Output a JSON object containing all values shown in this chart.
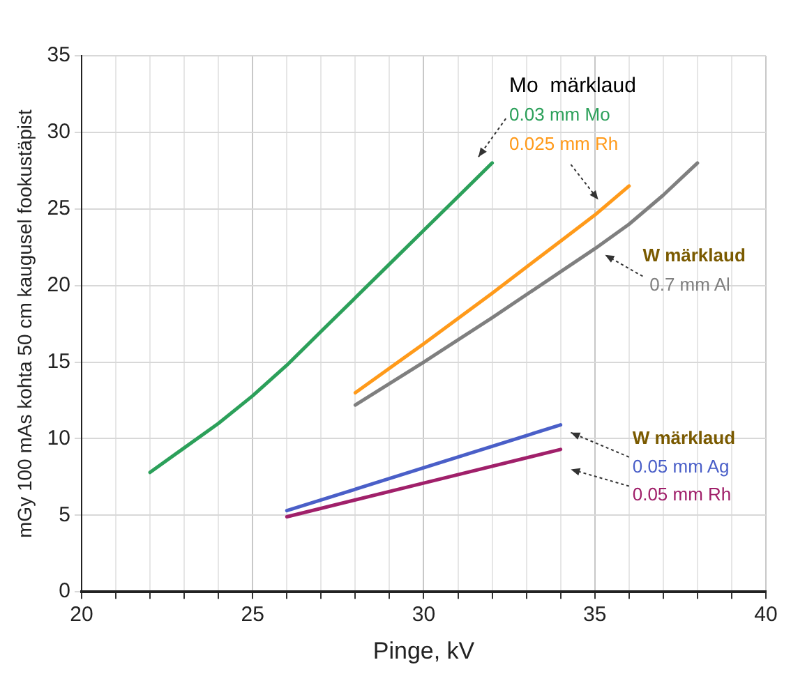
{
  "chart_data": {
    "type": "line",
    "xlabel": "Pinge, kV",
    "ylabel": "mGy 100 mAs kohta 50 cm kaugusel fookustäpist",
    "xlim": [
      20,
      40
    ],
    "ylim": [
      0,
      35
    ],
    "xticks": [
      20,
      {
        "value": 21,
        "label": null
      },
      {
        "value": 22,
        "label": null
      },
      {
        "value": 23,
        "label": null
      },
      {
        "value": 24,
        "label": null
      },
      25,
      {
        "value": 26,
        "label": null
      },
      {
        "value": 27,
        "label": null
      },
      {
        "value": 28,
        "label": null
      },
      {
        "value": 29,
        "label": null
      },
      30,
      {
        "value": 31,
        "label": null
      },
      {
        "value": 32,
        "label": null
      },
      {
        "value": 33,
        "label": null
      },
      {
        "value": 34,
        "label": null
      },
      35,
      {
        "value": 36,
        "label": null
      },
      {
        "value": 37,
        "label": null
      },
      {
        "value": 38,
        "label": null
      },
      {
        "value": 39,
        "label": null
      },
      40
    ],
    "yticks": [
      0,
      5,
      10,
      15,
      20,
      25,
      30,
      35
    ],
    "grid": true,
    "legend": false,
    "marker": "none",
    "line_style": "solid",
    "series": [
      {
        "name": "0.03 mm Mo",
        "color": "#2ca05a",
        "x": [
          22,
          23,
          24,
          25,
          26,
          27,
          28,
          29,
          30,
          31,
          32
        ],
        "values": [
          7.8,
          9.4,
          11.0,
          12.8,
          14.8,
          17.0,
          19.2,
          21.4,
          23.6,
          25.8,
          28.0
        ]
      },
      {
        "name": "0.025 mm Rh",
        "color": "#ff9a1a",
        "x": [
          28,
          30,
          32,
          34,
          35,
          36
        ],
        "values": [
          13.0,
          16.2,
          19.5,
          22.9,
          24.6,
          26.5
        ]
      },
      {
        "name": "0.7 mm Al",
        "color": "#7f7f7f",
        "x": [
          28,
          30,
          32,
          34,
          35,
          36,
          37,
          38
        ],
        "values": [
          12.2,
          15.0,
          17.9,
          20.9,
          22.4,
          24.0,
          25.9,
          28.0
        ]
      },
      {
        "name": "0.05 mm Ag",
        "color": "#4a5fc8",
        "x": [
          26,
          30,
          34
        ],
        "values": [
          5.3,
          8.1,
          10.9
        ]
      },
      {
        "name": "0.05 mm Rh",
        "color": "#a0206a",
        "x": [
          26,
          30,
          34
        ],
        "values": [
          4.9,
          7.1,
          9.3
        ]
      }
    ],
    "annotations": [
      "Mo  märklaud",
      "W märklaud",
      "W märklaud"
    ]
  }
}
